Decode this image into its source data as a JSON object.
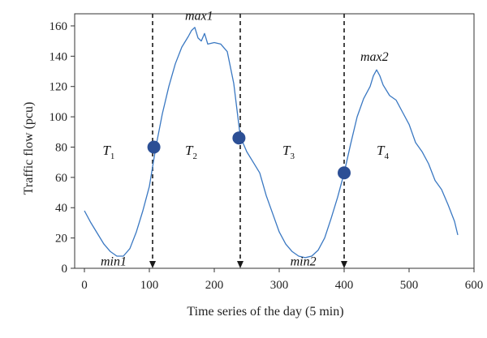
{
  "chart_data": {
    "type": "line",
    "title": "",
    "xlabel": "Time series of the day (5 min)",
    "ylabel": "Traffic flow (pcu)",
    "xlim": [
      -15,
      600
    ],
    "ylim": [
      0,
      168
    ],
    "xticks": [
      "0",
      "100",
      "200",
      "300",
      "400",
      "500",
      "600"
    ],
    "yticks": [
      "0",
      "20",
      "40",
      "60",
      "80",
      "100",
      "120",
      "140",
      "160"
    ],
    "grid": false,
    "legend": "none",
    "colors": {
      "line": "#3a78c2",
      "marker": "#2c4f95",
      "divider": "#1a1a1a"
    },
    "series": [
      {
        "x": [
          0,
          10,
          20,
          30,
          40,
          50,
          60,
          70,
          80,
          90,
          100,
          110,
          120,
          130,
          140,
          150,
          160,
          165,
          170,
          175,
          180,
          185,
          190,
          200,
          210,
          220,
          230,
          240,
          250,
          260,
          270,
          280,
          290,
          300,
          310,
          320,
          330,
          340,
          350,
          360,
          370,
          380,
          390,
          400,
          410,
          420,
          430,
          440,
          445,
          450,
          455,
          460,
          470,
          480,
          490,
          500,
          510,
          520,
          530,
          540,
          550,
          560,
          570,
          575
        ],
        "y": [
          38,
          30,
          23,
          16,
          11,
          8,
          8,
          13,
          24,
          38,
          54,
          80,
          102,
          120,
          135,
          146,
          153,
          157,
          159,
          152,
          150,
          155,
          148,
          149,
          148,
          143,
          122,
          87,
          77,
          70,
          63,
          48,
          36,
          24,
          16,
          11,
          8,
          7,
          8,
          12,
          20,
          33,
          47,
          63,
          82,
          100,
          112,
          120,
          127,
          131,
          127,
          121,
          114,
          111,
          103,
          95,
          83,
          77,
          69,
          58,
          52,
          42,
          31,
          22
        ]
      }
    ],
    "markers": [
      {
        "x": 107,
        "y": 80
      },
      {
        "x": 238,
        "y": 86
      },
      {
        "x": 400,
        "y": 63
      }
    ],
    "dividers": [
      105,
      240,
      400
    ],
    "annotations": [
      {
        "text": "max1",
        "x": 155,
        "y": 164
      },
      {
        "text": "max2",
        "x": 425,
        "y": 137
      },
      {
        "text": "min1",
        "x": 25,
        "y": 2
      },
      {
        "text": "min2",
        "x": 317,
        "y": 2
      }
    ],
    "segments": [
      {
        "letter": "T",
        "sub": "1",
        "x": 28,
        "y": 75
      },
      {
        "letter": "T",
        "sub": "2",
        "x": 155,
        "y": 75
      },
      {
        "letter": "T",
        "sub": "3",
        "x": 305,
        "y": 75
      },
      {
        "letter": "T",
        "sub": "4",
        "x": 450,
        "y": 75
      }
    ]
  }
}
